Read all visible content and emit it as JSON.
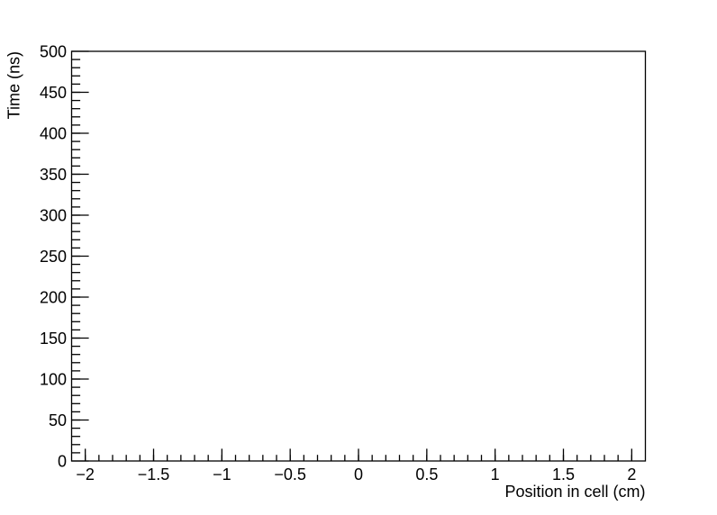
{
  "figure": {
    "background_color": "#ffffff",
    "axis_color": "#000000",
    "text_color": "#000000"
  },
  "chart_data": {
    "type": "scatter",
    "title": "",
    "xlabel": "Position in cell (cm)",
    "ylabel": "Time (ns)",
    "xlim": [
      -2.1,
      2.1
    ],
    "ylim": [
      0,
      500
    ],
    "x_major_ticks": [
      -2,
      -1.5,
      -1,
      -0.5,
      0,
      0.5,
      1,
      1.5,
      2
    ],
    "x_tick_labels": [
      "−2",
      "−1.5",
      "−1",
      "−0.5",
      "0",
      "0.5",
      "1",
      "1.5",
      "2"
    ],
    "x_minor_step": 0.1,
    "y_major_ticks": [
      0,
      50,
      100,
      150,
      200,
      250,
      300,
      350,
      400,
      450,
      500
    ],
    "y_tick_labels": [
      "0",
      "50",
      "100",
      "150",
      "200",
      "250",
      "300",
      "350",
      "400",
      "450",
      "500"
    ],
    "y_minor_step": 10,
    "grid": false,
    "legend": null,
    "series": []
  }
}
